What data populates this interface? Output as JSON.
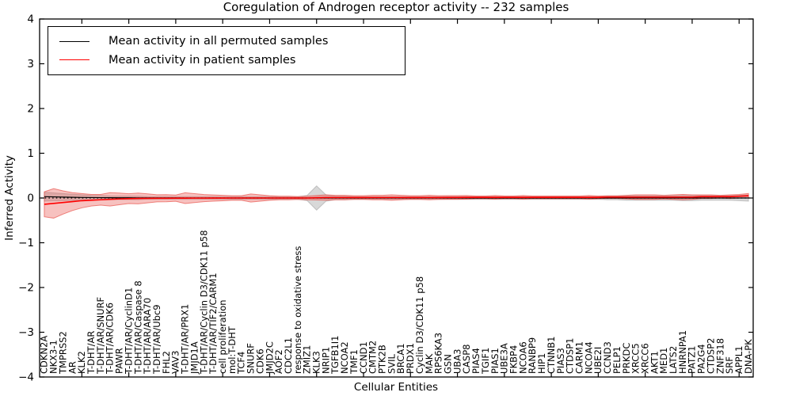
{
  "chart_data": {
    "type": "line",
    "title": "Coregulation of Androgen receptor activity -- 232 samples",
    "xlabel": "Cellular Entities",
    "ylabel": "Inferred Activity",
    "ylim": [
      -4,
      4
    ],
    "ytick_values": [
      4,
      3,
      2,
      1,
      0,
      -1,
      -2,
      -3,
      -4
    ],
    "ytick_labels": [
      "4",
      "3",
      "2",
      "1",
      "0",
      "−1",
      "−2",
      "−3",
      "−4"
    ],
    "grid": false,
    "legend_position": "upper left",
    "zero_line": {
      "y": 0,
      "style": "dotted",
      "color": "#000000"
    },
    "categories": [
      "CDKN2A",
      "NKX3-1",
      "TMPRSS2",
      "AR",
      "KLK2",
      "T-DHT/AR",
      "T-DHT/AR/SNURF",
      "T-DHT/AR/CDK6",
      "PAWR",
      "T-DHT/AR/CyclinD1",
      "T-DHT/AR/Caspase 8",
      "T-DHT/AR/ARA70",
      "T-DHT/AR/Ubc9",
      "FHL2",
      "VAV3",
      "T-DHT/AR/PRX1",
      "JMJD1A",
      "T-DHT/AR/Cyclin D3/CDK11 p58",
      "T-DHT/AR/TIF2/CARM1",
      "cell proliferation",
      "mol:T-DHT",
      "TCF4",
      "SNURF",
      "CDK6",
      "JMJD2C",
      "AOF2",
      "CDC2L1",
      "response to oxidative stress",
      "ZMIZ1",
      "KLK3",
      "NRIP1",
      "TGFB1I1",
      "NCOA2",
      "TMF1",
      "CCND1",
      "CMTM2",
      "PTK2B",
      "SVIL",
      "BRCA1",
      "PRDX1",
      "Cyclin D3/CDK11 p58",
      "MAK",
      "RPS6KA3",
      "GSN",
      "UBA3",
      "CASP8",
      "PIAS4",
      "TGIF1",
      "PIAS1",
      "UBE3A",
      "FKBP4",
      "NCOA6",
      "RANBP9",
      "HIP1",
      "CTNNB1",
      "PIAS3",
      "CTDSP1",
      "CARM1",
      "NCOA4",
      "UBE2I",
      "CCND3",
      "PELP1",
      "PRKDC",
      "XRCC5",
      "XRCC6",
      "AKT1",
      "MED1",
      "LATS2",
      "HNRNPA1",
      "PATZ1",
      "PA2G4",
      "CTDSP2",
      "ZNF318",
      "SRF",
      "APPL1",
      "DNA-PK"
    ],
    "series": [
      {
        "name": "Mean activity in all permuted samples",
        "color": "#000000",
        "band_color": "#999999",
        "values": [
          0.03,
          0.025,
          0.02,
          0.015,
          0.012,
          0.01,
          0.008,
          0.006,
          0.005,
          0.004,
          0.003,
          0.003,
          0.002,
          0.002,
          0.002,
          0.001,
          0.001,
          0.001,
          0.001,
          0.001,
          0,
          0,
          0,
          0,
          0,
          0,
          0,
          0,
          0,
          0,
          0,
          0,
          0,
          0,
          0,
          0,
          0,
          0,
          0,
          0,
          0,
          0,
          0,
          0,
          0,
          0,
          0,
          0,
          0,
          0,
          0,
          0,
          0,
          0,
          0,
          0,
          0,
          0,
          0,
          0,
          0,
          0,
          0,
          0,
          0,
          0,
          0,
          0,
          0,
          0,
          0,
          0,
          0,
          0,
          0,
          0
        ],
        "band_halfwidth": [
          0.1,
          0.09,
          0.08,
          0.07,
          0.06,
          0.05,
          0.05,
          0.04,
          0.04,
          0.04,
          0.04,
          0.03,
          0.03,
          0.03,
          0.03,
          0.03,
          0.03,
          0.03,
          0.03,
          0.03,
          0.03,
          0.03,
          0.03,
          0.03,
          0.03,
          0.03,
          0.03,
          0.03,
          0.06,
          0.27,
          0.07,
          0.04,
          0.04,
          0.03,
          0.03,
          0.03,
          0.03,
          0.03,
          0.03,
          0.03,
          0.03,
          0.03,
          0.03,
          0.03,
          0.03,
          0.03,
          0.03,
          0.03,
          0.03,
          0.03,
          0.03,
          0.03,
          0.03,
          0.03,
          0.03,
          0.03,
          0.03,
          0.03,
          0.03,
          0.03,
          0.04,
          0.04,
          0.05,
          0.05,
          0.05,
          0.05,
          0.05,
          0.05,
          0.06,
          0.06,
          0.05,
          0.05,
          0.05,
          0.05,
          0.06,
          0.07
        ]
      },
      {
        "name": "Mean activity in patient samples",
        "color": "#ff0000",
        "band_color": "#e84a42",
        "values": [
          -0.14,
          -0.12,
          -0.1,
          -0.08,
          -0.06,
          -0.05,
          -0.04,
          -0.03,
          -0.02,
          -0.015,
          -0.01,
          -0.008,
          -0.006,
          -0.005,
          -0.004,
          -0.003,
          -0.002,
          -0.002,
          -0.001,
          -0.001,
          0,
          0,
          0,
          0,
          0,
          0,
          0,
          0,
          0,
          0.005,
          0.01,
          0.01,
          0.01,
          0.01,
          0.01,
          0.01,
          0.01,
          0.01,
          0.01,
          0.01,
          0.01,
          0.01,
          0.01,
          0.012,
          0.012,
          0.015,
          0.015,
          0.015,
          0.015,
          0.015,
          0.015,
          0.015,
          0.015,
          0.015,
          0.015,
          0.015,
          0.015,
          0.015,
          0.015,
          0.015,
          0.02,
          0.02,
          0.02,
          0.02,
          0.02,
          0.02,
          0.02,
          0.02,
          0.02,
          0.02,
          0.03,
          0.03,
          0.03,
          0.03,
          0.04,
          0.05
        ],
        "band_halfwidth": [
          0.28,
          0.33,
          0.26,
          0.2,
          0.16,
          0.13,
          0.12,
          0.15,
          0.13,
          0.11,
          0.12,
          0.1,
          0.08,
          0.08,
          0.07,
          0.12,
          0.1,
          0.08,
          0.07,
          0.06,
          0.05,
          0.05,
          0.09,
          0.07,
          0.05,
          0.04,
          0.04,
          0.03,
          0.04,
          0.05,
          0.06,
          0.05,
          0.05,
          0.04,
          0.04,
          0.05,
          0.05,
          0.06,
          0.05,
          0.04,
          0.04,
          0.05,
          0.04,
          0.04,
          0.04,
          0.04,
          0.03,
          0.03,
          0.04,
          0.03,
          0.03,
          0.04,
          0.03,
          0.03,
          0.03,
          0.03,
          0.03,
          0.03,
          0.04,
          0.03,
          0.03,
          0.03,
          0.04,
          0.05,
          0.05,
          0.05,
          0.04,
          0.05,
          0.06,
          0.05,
          0.04,
          0.04,
          0.03,
          0.04,
          0.04,
          0.05
        ]
      }
    ],
    "xtick_every": 5
  },
  "legend": {
    "items": [
      {
        "label": "Mean activity in all permuted samples",
        "color": "#000000"
      },
      {
        "label": "Mean activity in patient samples",
        "color": "#ff0000"
      }
    ]
  }
}
